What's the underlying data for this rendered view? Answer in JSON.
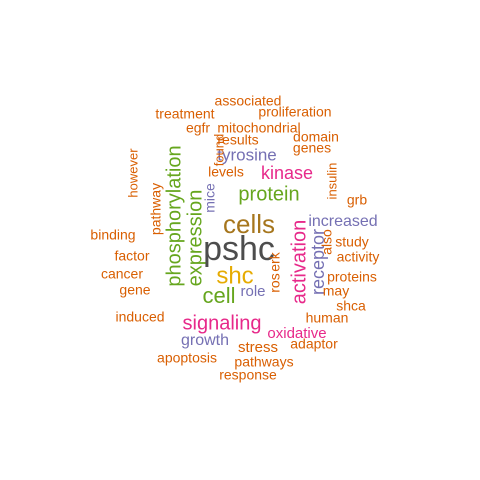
{
  "wordcloud": {
    "palette": {
      "dark-gray": "#4D4D4D",
      "brown": "#A6761D",
      "gold": "#E6AB02",
      "magenta": "#E7298A",
      "green": "#66A61E",
      "slate-blue": "#7570B3",
      "orange": "#D95F02"
    },
    "words": [
      {
        "text": "pshc",
        "freq": 100,
        "color": "#4D4D4D"
      },
      {
        "text": "cells",
        "freq": 72,
        "color": "#A6761D"
      },
      {
        "text": "shc",
        "freq": 58,
        "color": "#E6AB02"
      },
      {
        "text": "cell",
        "freq": 52,
        "color": "#66A61E"
      },
      {
        "text": "phosphorylation",
        "freq": 48,
        "color": "#66A61E"
      },
      {
        "text": "expression",
        "freq": 46,
        "color": "#66A61E"
      },
      {
        "text": "activation",
        "freq": 45,
        "color": "#E7298A"
      },
      {
        "text": "protein",
        "freq": 42,
        "color": "#66A61E"
      },
      {
        "text": "signaling",
        "freq": 40,
        "color": "#E7298A"
      },
      {
        "text": "kinase",
        "freq": 35,
        "color": "#E7298A"
      },
      {
        "text": "receptor",
        "freq": 33,
        "color": "#7570B3"
      },
      {
        "text": "tyrosine",
        "freq": 31,
        "color": "#7570B3"
      },
      {
        "text": "increased",
        "freq": 29,
        "color": "#7570B3"
      },
      {
        "text": "growth",
        "freq": 29,
        "color": "#7570B3"
      },
      {
        "text": "oxidative",
        "freq": 28,
        "color": "#E7298A"
      },
      {
        "text": "stress",
        "freq": 28,
        "color": "#D95F02"
      },
      {
        "text": "role",
        "freq": 27,
        "color": "#7570B3"
      },
      {
        "text": "pathway",
        "freq": 25,
        "color": "#D95F02"
      },
      {
        "text": "pathways",
        "freq": 24,
        "color": "#D95F02"
      },
      {
        "text": "apoptosis",
        "freq": 24,
        "color": "#D95F02"
      },
      {
        "text": "proteins",
        "freq": 24,
        "color": "#D95F02"
      },
      {
        "text": "study",
        "freq": 24,
        "color": "#D95F02"
      },
      {
        "text": "levels",
        "freq": 24,
        "color": "#D95F02"
      },
      {
        "text": "results",
        "freq": 24,
        "color": "#D95F02"
      },
      {
        "text": "human",
        "freq": 23,
        "color": "#D95F02"
      },
      {
        "text": "induced",
        "freq": 23,
        "color": "#D95F02"
      },
      {
        "text": "mice",
        "freq": 23,
        "color": "#7570B3"
      },
      {
        "text": "associated",
        "freq": 22,
        "color": "#D95F02"
      },
      {
        "text": "proliferation",
        "freq": 22,
        "color": "#D95F02"
      },
      {
        "text": "mitochondrial",
        "freq": 22,
        "color": "#D95F02"
      },
      {
        "text": "treatment",
        "freq": 22,
        "color": "#D95F02"
      },
      {
        "text": "genes",
        "freq": 22,
        "color": "#D95F02"
      },
      {
        "text": "domain",
        "freq": 22,
        "color": "#D95F02"
      },
      {
        "text": "egfr",
        "freq": 22,
        "color": "#D95F02"
      },
      {
        "text": "found",
        "freq": 22,
        "color": "#D95F02"
      },
      {
        "text": "insulin",
        "freq": 22,
        "color": "#D95F02"
      },
      {
        "text": "grb",
        "freq": 22,
        "color": "#D95F02"
      },
      {
        "text": "however",
        "freq": 22,
        "color": "#D95F02"
      },
      {
        "text": "binding",
        "freq": 22,
        "color": "#D95F02"
      },
      {
        "text": "factor",
        "freq": 22,
        "color": "#D95F02"
      },
      {
        "text": "cancer",
        "freq": 22,
        "color": "#D95F02"
      },
      {
        "text": "gene",
        "freq": 22,
        "color": "#D95F02"
      },
      {
        "text": "also",
        "freq": 22,
        "color": "#D95F02"
      },
      {
        "text": "activity",
        "freq": 22,
        "color": "#D95F02"
      },
      {
        "text": "may",
        "freq": 22,
        "color": "#D95F02"
      },
      {
        "text": "shca",
        "freq": 22,
        "color": "#D95F02"
      },
      {
        "text": "adaptor",
        "freq": 22,
        "color": "#D95F02"
      },
      {
        "text": "response",
        "freq": 22,
        "color": "#D95F02"
      },
      {
        "text": "ros",
        "freq": 22,
        "color": "#D95F02"
      },
      {
        "text": "erk",
        "freq": 22,
        "color": "#D95F02"
      }
    ]
  }
}
